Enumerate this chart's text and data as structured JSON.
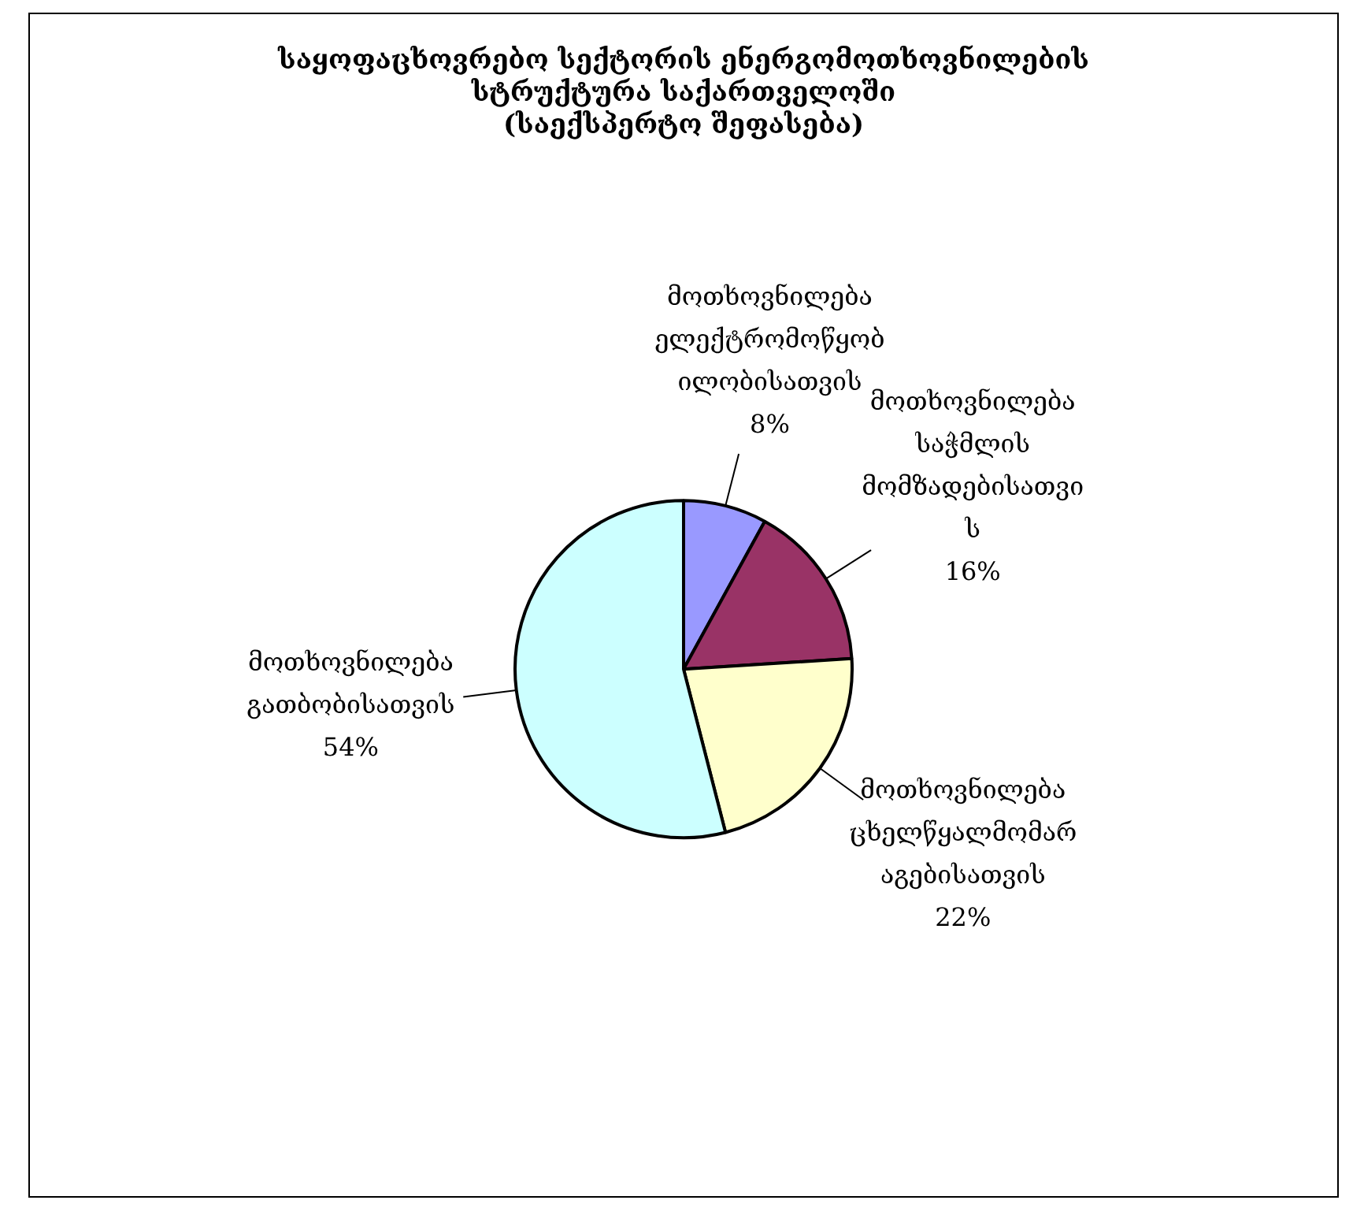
{
  "chart_data": {
    "type": "pie",
    "title": "საყოფაცხოვრებო სექტორის ენერგომოთხოვნილების\nსტრუქტურა საქართველოში\n(საექსპერტო შეფასება)",
    "categories": [
      "მოთხოვნილება ელექტრომოწყობილობისათვის",
      "მოთხოვნილება საჭმლის მომზადებისათვის",
      "მოთხოვნილება ცხელწყალმომარაგებისათვის",
      "მოთხოვნილება გათბობისათვის"
    ],
    "values": [
      8,
      16,
      22,
      54
    ],
    "value_labels": [
      "8%",
      "16%",
      "22%",
      "54%"
    ],
    "colors": [
      "#9999ff",
      "#993366",
      "#ffffcc",
      "#ccffff"
    ],
    "legend": false
  }
}
